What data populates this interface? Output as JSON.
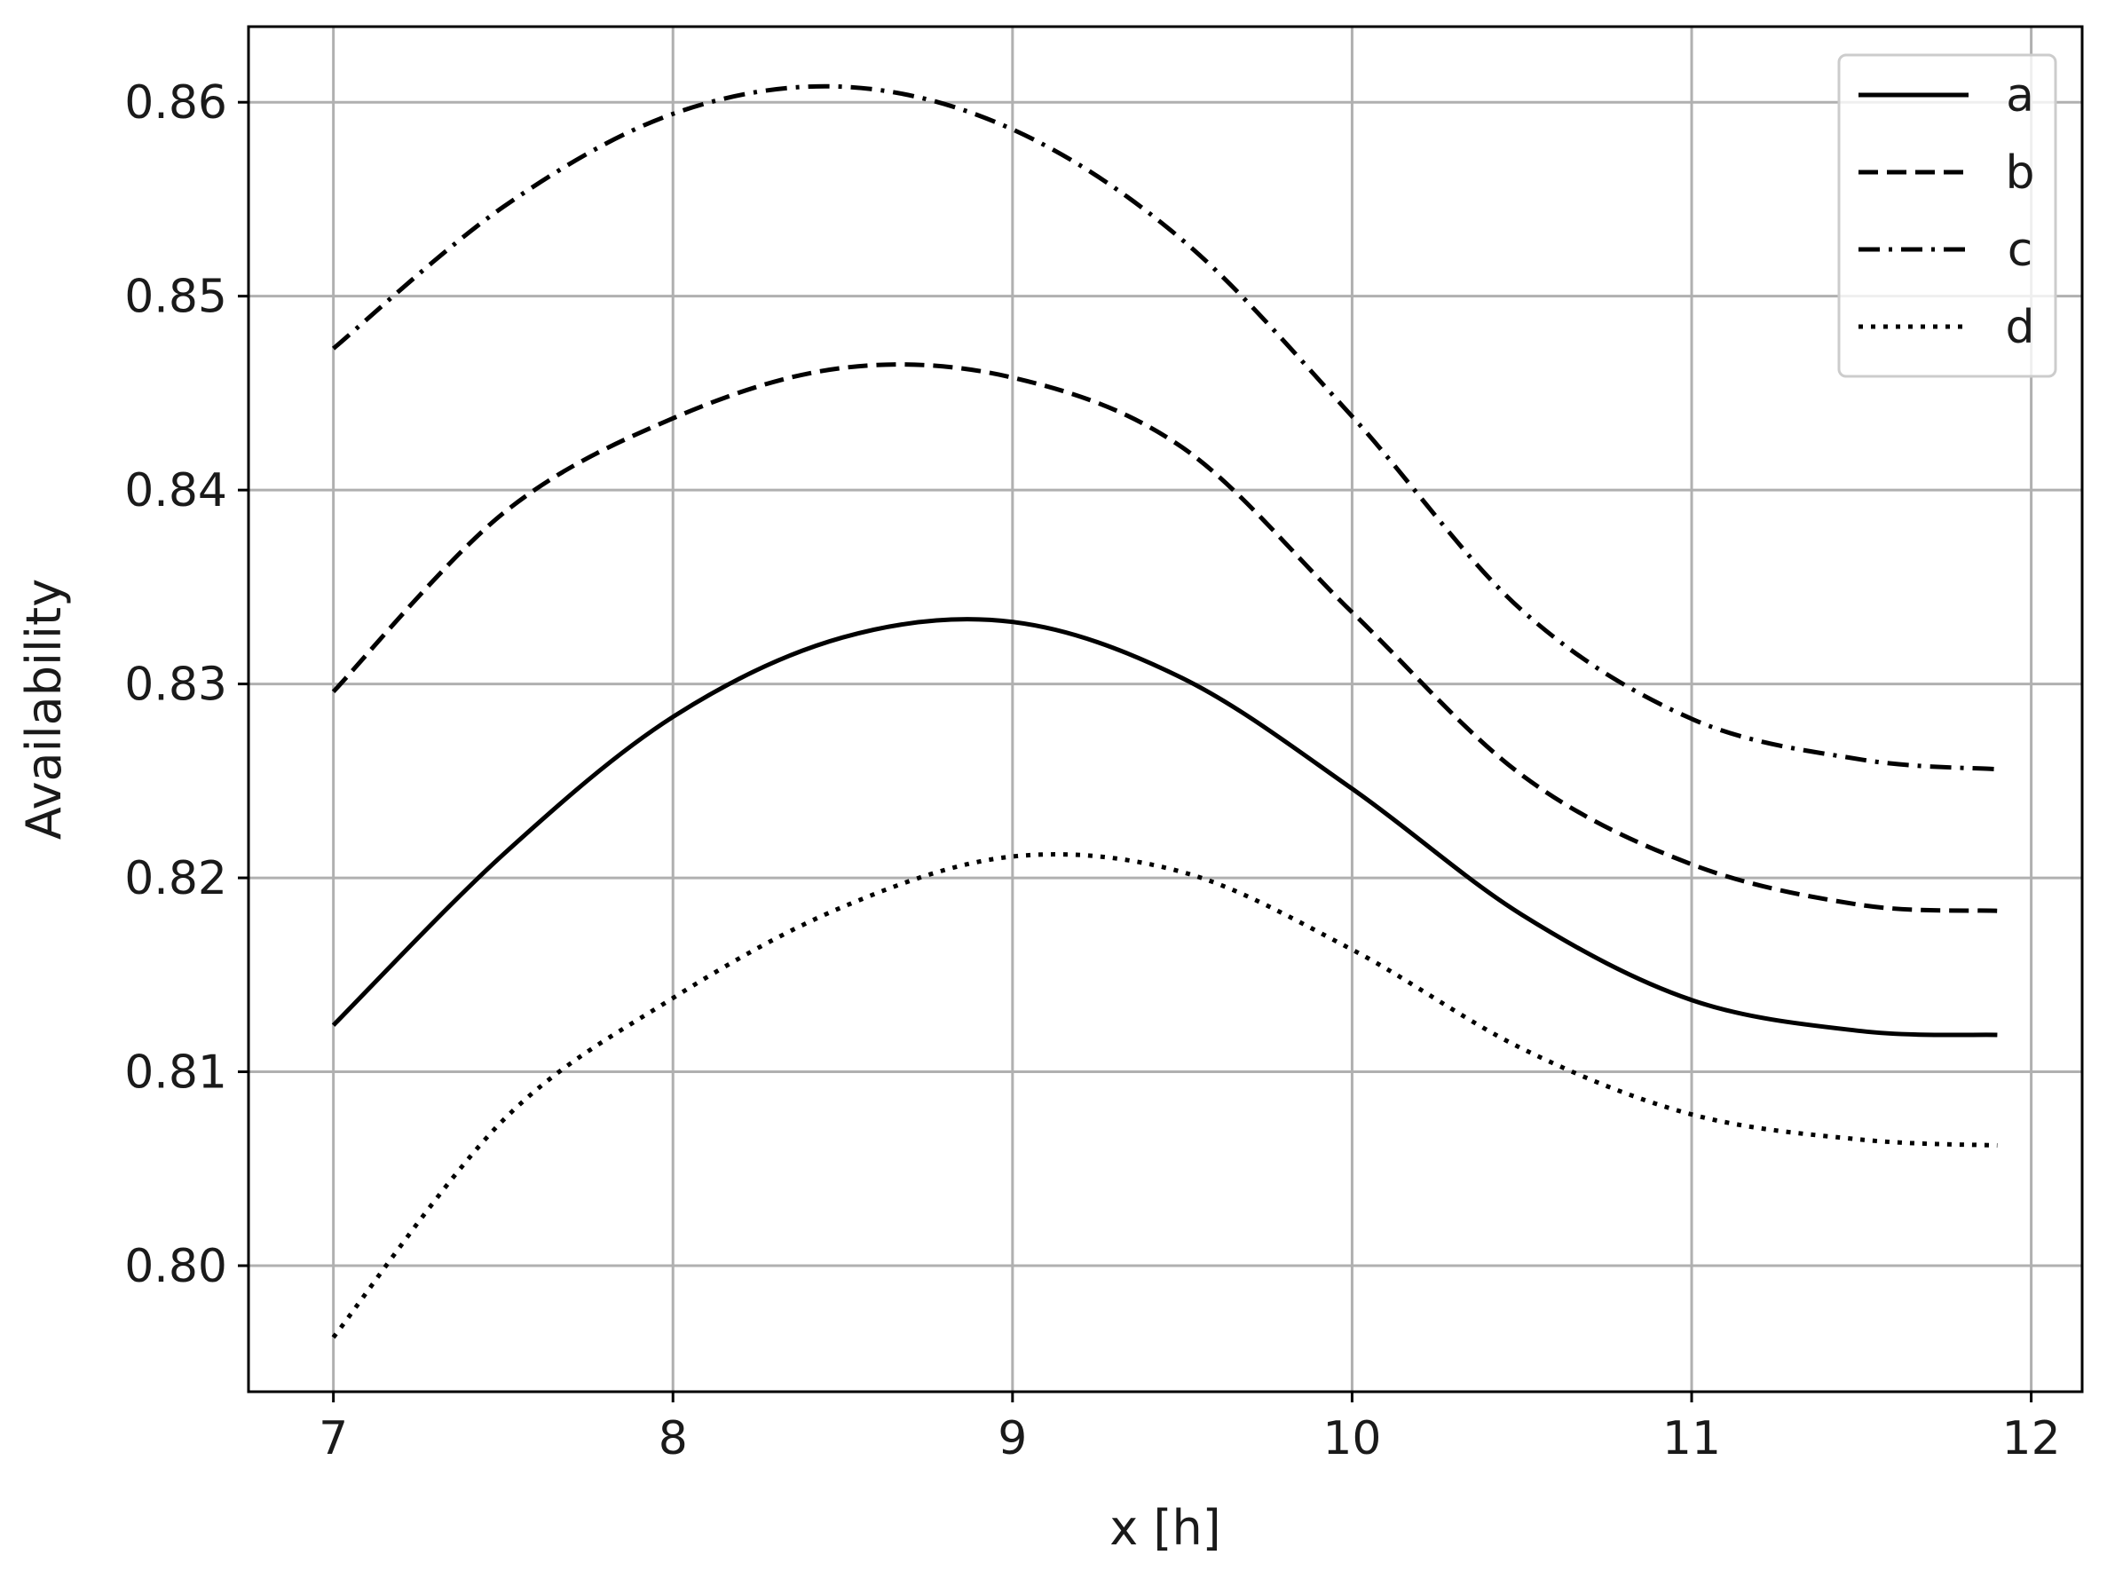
{
  "chart_data": {
    "type": "line",
    "xlabel": "x [h]",
    "ylabel": "Availability",
    "xlim": [
      6.75,
      12.15
    ],
    "ylim": [
      0.7935,
      0.8639
    ],
    "xticks": [
      7,
      8,
      9,
      10,
      11,
      12
    ],
    "xtick_labels": [
      "7",
      "8",
      "9",
      "10",
      "11",
      "12"
    ],
    "yticks": [
      0.8,
      0.81,
      0.82,
      0.83,
      0.84,
      0.85,
      0.86
    ],
    "ytick_labels": [
      "0.80",
      "0.81",
      "0.82",
      "0.83",
      "0.84",
      "0.85",
      "0.86"
    ],
    "grid": true,
    "legend_position": "top-right",
    "x": [
      7.0,
      7.5,
      8.0,
      8.5,
      9.0,
      9.5,
      10.0,
      10.5,
      11.0,
      11.5,
      11.9
    ],
    "series": [
      {
        "name": "a",
        "linestyle": "solid",
        "values": [
          0.8124,
          0.8212,
          0.8283,
          0.8324,
          0.8332,
          0.8303,
          0.8246,
          0.8181,
          0.8137,
          0.8121,
          0.8119
        ]
      },
      {
        "name": "b",
        "linestyle": "dashed",
        "values": [
          0.8296,
          0.8388,
          0.8437,
          0.8463,
          0.8458,
          0.8422,
          0.8337,
          0.8253,
          0.8207,
          0.8186,
          0.8183
        ]
      },
      {
        "name": "c",
        "linestyle": "dashdot",
        "values": [
          0.8473,
          0.8546,
          0.8594,
          0.8608,
          0.8586,
          0.8529,
          0.8438,
          0.8338,
          0.8282,
          0.8261,
          0.8256
        ]
      },
      {
        "name": "d",
        "linestyle": "dotted",
        "values": [
          0.7963,
          0.8075,
          0.8138,
          0.8185,
          0.8211,
          0.8203,
          0.8163,
          0.8112,
          0.8078,
          0.8065,
          0.8062
        ]
      }
    ]
  },
  "colors": {
    "line": "#000000",
    "grid": "#b0b0b0",
    "background": "#ffffff"
  }
}
